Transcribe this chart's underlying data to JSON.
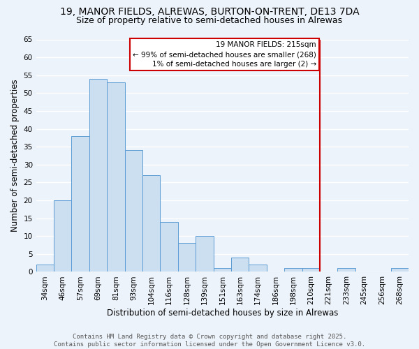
{
  "title_line1": "19, MANOR FIELDS, ALREWAS, BURTON-ON-TRENT, DE13 7DA",
  "title_line2": "Size of property relative to semi-detached houses in Alrewas",
  "xlabel": "Distribution of semi-detached houses by size in Alrewas",
  "ylabel": "Number of semi-detached properties",
  "categories": [
    "34sqm",
    "46sqm",
    "57sqm",
    "69sqm",
    "81sqm",
    "93sqm",
    "104sqm",
    "116sqm",
    "128sqm",
    "139sqm",
    "151sqm",
    "163sqm",
    "174sqm",
    "186sqm",
    "198sqm",
    "210sqm",
    "221sqm",
    "233sqm",
    "245sqm",
    "256sqm",
    "268sqm"
  ],
  "values": [
    2,
    20,
    38,
    54,
    53,
    34,
    27,
    14,
    8,
    10,
    1,
    4,
    2,
    0,
    1,
    1,
    0,
    1,
    0,
    0,
    1
  ],
  "bar_color": "#ccdff0",
  "bar_edge_color": "#5b9bd5",
  "background_color": "#edf3fb",
  "grid_color": "#ffffff",
  "vline_color": "#cc0000",
  "vline_index": 15.5,
  "annotation_line1": "19 MANOR FIELDS: 215sqm",
  "annotation_line2": "← 99% of semi-detached houses are smaller (268)",
  "annotation_line3": "1% of semi-detached houses are larger (2) →",
  "annotation_box_facecolor": "#ffffff",
  "annotation_box_edgecolor": "#cc0000",
  "ylim": [
    0,
    65
  ],
  "yticks": [
    0,
    5,
    10,
    15,
    20,
    25,
    30,
    35,
    40,
    45,
    50,
    55,
    60,
    65
  ],
  "footer_text": "Contains HM Land Registry data © Crown copyright and database right 2025.\nContains public sector information licensed under the Open Government Licence v3.0.",
  "title_fontsize": 10,
  "subtitle_fontsize": 9,
  "axis_label_fontsize": 8.5,
  "tick_fontsize": 7.5,
  "annotation_fontsize": 7.5,
  "footer_fontsize": 6.5
}
